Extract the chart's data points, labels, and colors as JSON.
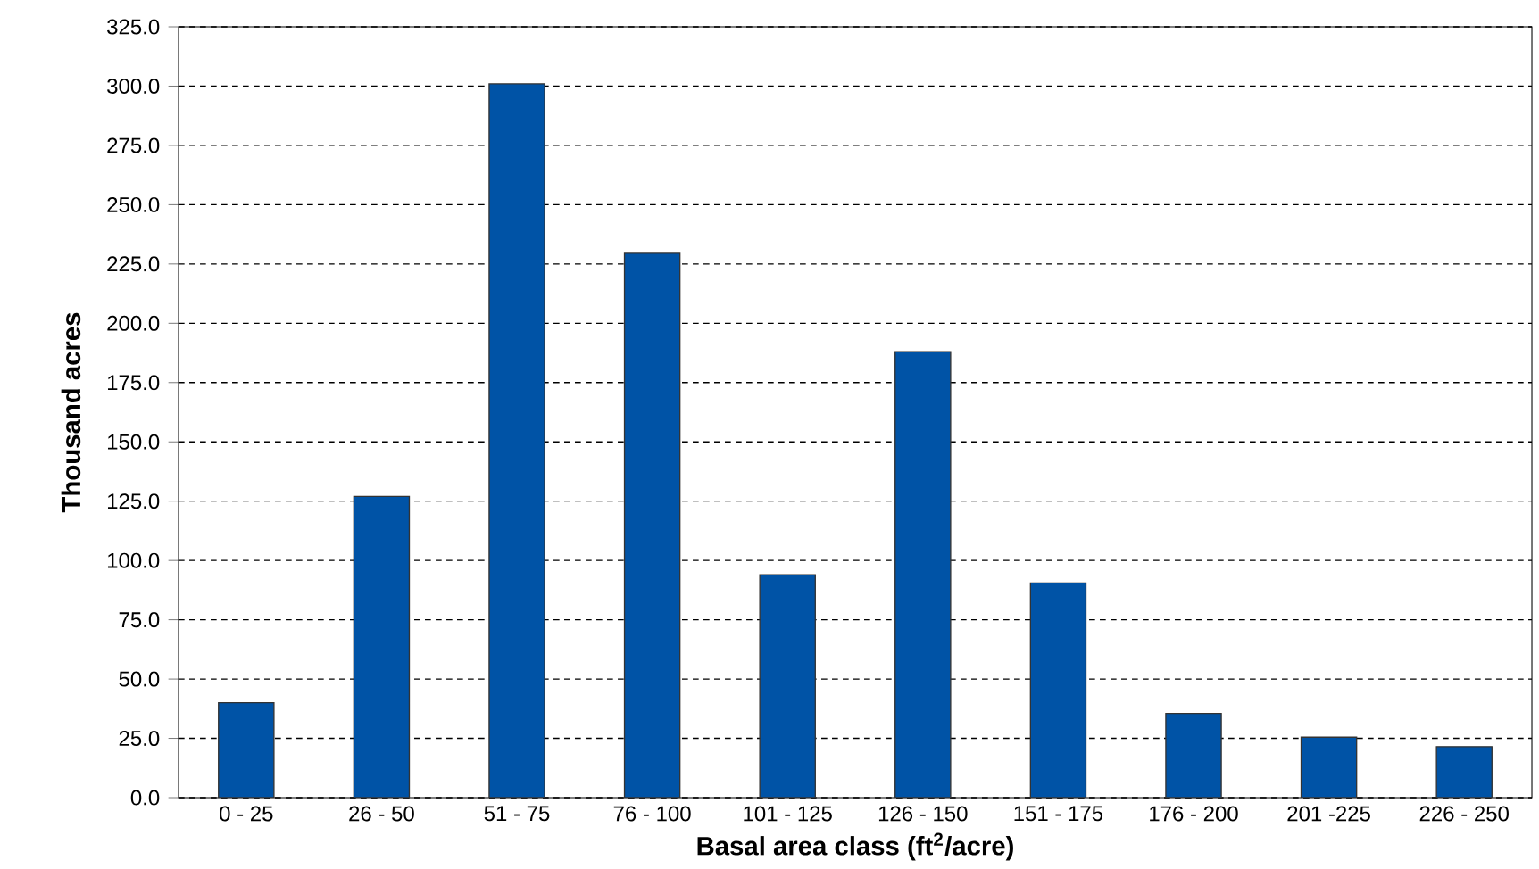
{
  "chart_data": {
    "type": "bar",
    "xlabel": "Basal area class (ft$^{2}$/acre)",
    "ylabel": "Thousand acres",
    "categories": [
      "0 - 25",
      "26 - 50",
      "51 - 75",
      "76 - 100",
      "101 - 125",
      "126 - 150",
      "151 - 175",
      "176 - 200",
      "201 -225",
      "226 - 250"
    ],
    "values": [
      40,
      127,
      301,
      229.5,
      94,
      188,
      90.5,
      35.5,
      25.5,
      21.5
    ],
    "color": "#0053a6",
    "ylim": [
      0,
      325
    ],
    "yticks": [
      {
        "value": 0,
        "label": "0.0"
      },
      {
        "value": 25,
        "label": "25.0"
      },
      {
        "value": 50,
        "label": "50.0"
      },
      {
        "value": 75,
        "label": "75.0"
      },
      {
        "value": 100,
        "label": "100.0"
      },
      {
        "value": 125,
        "label": "125.0"
      },
      {
        "value": 150,
        "label": "150.0"
      },
      {
        "value": 175,
        "label": "175.0"
      },
      {
        "value": 200,
        "label": "200.0"
      },
      {
        "value": 225,
        "label": "225.0"
      },
      {
        "value": 250,
        "label": "250.0"
      },
      {
        "value": 275,
        "label": "275.0"
      },
      {
        "value": 300,
        "label": "300.0"
      },
      {
        "value": 325,
        "label": "325.0"
      }
    ],
    "grid": "y"
  }
}
